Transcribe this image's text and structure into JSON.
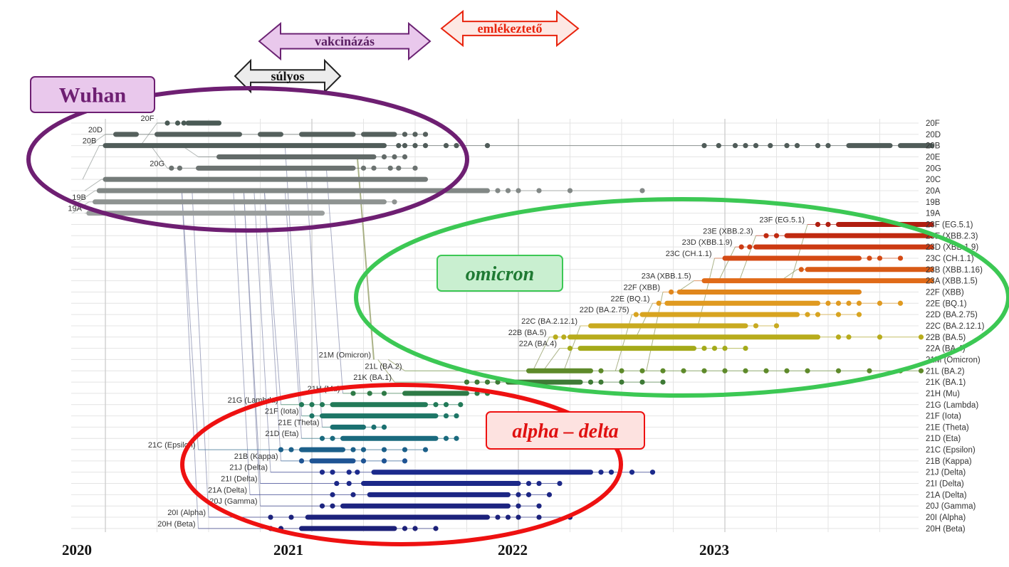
{
  "chart_data": {
    "type": "scatter",
    "title": "",
    "xlabel": "",
    "ylabel": "",
    "x_ticks": [
      "2020",
      "2021",
      "2022",
      "2023"
    ],
    "xlim": [
      "2019-12-01",
      "2023-12-31"
    ],
    "clades": [
      {
        "label": "20F",
        "row": 0,
        "color": "#4a5a55",
        "start": 2020.25,
        "segments": [
          [
            2020.4,
            2020.55
          ]
        ],
        "dots": [
          2020.3,
          2020.35,
          2020.38
        ]
      },
      {
        "label": "20D",
        "row": 1,
        "color": "#55605d",
        "start": 2020.0,
        "segments": [
          [
            2020.05,
            2020.15
          ],
          [
            2020.25,
            2020.65
          ],
          [
            2020.75,
            2020.85
          ],
          [
            2020.95,
            2021.2
          ],
          [
            2021.25,
            2021.4
          ]
        ],
        "dots": [
          2021.45,
          2021.5,
          2021.55
        ]
      },
      {
        "label": "20B",
        "row": 2,
        "color": "#505c59",
        "start": 2019.97,
        "segments": [
          [
            2020.0,
            2021.35
          ]
        ],
        "dots": [
          2021.42,
          2021.45,
          2021.5,
          2021.55,
          2021.65,
          2021.7,
          2021.85,
          2022.9,
          2022.97,
          2023.05,
          2023.1,
          2023.15,
          2023.22,
          2023.3,
          2023.35,
          2023.45,
          2023.5
        ],
        "extra_segments": [
          [
            2023.6,
            2023.8
          ],
          [
            2023.85,
            2024.0
          ]
        ]
      },
      {
        "label": "20E",
        "row": 3,
        "color": "#626a68",
        "start": 2020.45,
        "segments": [
          [
            2020.55,
            2021.3
          ]
        ],
        "dots": [
          2021.35,
          2021.4,
          2021.45
        ]
      },
      {
        "label": "20G",
        "row": 4,
        "color": "#6c7371",
        "start": 2020.3,
        "segments": [
          [
            2020.45,
            2021.2
          ]
        ],
        "dots": [
          2020.32,
          2020.36,
          2021.25,
          2021.3,
          2021.38,
          2021.42,
          2021.5
        ]
      },
      {
        "label": "20C",
        "row": 5,
        "color": "#747b79",
        "start": 2019.98,
        "segments": [
          [
            2020.0,
            2021.55
          ]
        ],
        "dots": []
      },
      {
        "label": "20A",
        "row": 6,
        "color": "#828886",
        "start": 2019.95,
        "segments": [
          [
            2019.97,
            2021.85
          ]
        ],
        "dots": [
          2021.9,
          2021.95,
          2022.0,
          2022.1,
          2022.25,
          2022.6
        ]
      },
      {
        "label": "19B",
        "row": 7,
        "color": "#8e9391",
        "start": 2019.92,
        "segments": [
          [
            2019.95,
            2021.35
          ]
        ],
        "dots": [
          2021.4
        ]
      },
      {
        "label": "19A",
        "row": 8,
        "color": "#9a9e9d",
        "start": 2019.9,
        "segments": [
          [
            2019.92,
            2021.05
          ]
        ],
        "dots": []
      },
      {
        "label": "23F (EG.5.1)",
        "row": 9,
        "color": "#b01e10",
        "start": 2023.4,
        "segments": [
          [
            2023.55,
            2024.0
          ]
        ],
        "dots": [
          2023.45,
          2023.5
        ]
      },
      {
        "label": "23E (XBB.2.3)",
        "row": 10,
        "color": "#c02a10",
        "start": 2023.15,
        "segments": [
          [
            2023.3,
            2024.0
          ]
        ],
        "dots": [
          2023.2,
          2023.25
        ]
      },
      {
        "label": "23D (XBB.1.9)",
        "row": 11,
        "color": "#cc3a12",
        "start": 2023.05,
        "segments": [
          [
            2023.15,
            2024.0
          ]
        ],
        "dots": [
          2023.08,
          2023.12
        ]
      },
      {
        "label": "23C (CH.1.1)",
        "row": 12,
        "color": "#d44a14",
        "start": 2022.95,
        "segments": [
          [
            2023.0,
            2023.65
          ]
        ],
        "dots": [
          2023.7,
          2023.75,
          2023.85
        ]
      },
      {
        "label": "23B (XBB.1.16)",
        "row": 13,
        "color": "#d85a16",
        "start": 2023.35,
        "segments": [
          [
            2023.4,
            2024.0
          ]
        ],
        "dots": [
          2023.37
        ]
      },
      {
        "label": "23A (XBB.1.5)",
        "row": 14,
        "color": "#e06a18",
        "start": 2022.85,
        "segments": [
          [
            2022.9,
            2024.0
          ]
        ],
        "dots": []
      },
      {
        "label": "22F (XBB)",
        "row": 15,
        "color": "#e0861c",
        "start": 2022.7,
        "segments": [
          [
            2022.78,
            2023.65
          ]
        ],
        "dots": [
          2022.74
        ]
      },
      {
        "label": "22E (BQ.1)",
        "row": 16,
        "color": "#e09a20",
        "start": 2022.65,
        "segments": [
          [
            2022.72,
            2023.45
          ]
        ],
        "dots": [
          2022.68,
          2023.5,
          2023.55,
          2023.6,
          2023.65,
          2023.75,
          2023.85
        ]
      },
      {
        "label": "22D (BA.2.75)",
        "row": 17,
        "color": "#d8a420",
        "start": 2022.55,
        "segments": [
          [
            2022.6,
            2023.35
          ]
        ],
        "dots": [
          2022.57,
          2023.4,
          2023.45,
          2023.55,
          2023.65
        ]
      },
      {
        "label": "22C (BA.2.12.1)",
        "row": 18,
        "color": "#c8aa20",
        "start": 2022.3,
        "segments": [
          [
            2022.35,
            2023.1
          ]
        ],
        "dots": [
          2023.15,
          2023.25
        ]
      },
      {
        "label": "22B (BA.5)",
        "row": 19,
        "color": "#b8ac1c",
        "start": 2022.15,
        "segments": [
          [
            2022.25,
            2023.45
          ]
        ],
        "dots": [
          2022.18,
          2022.22,
          2023.55,
          2023.6,
          2023.75,
          2023.95
        ]
      },
      {
        "label": "22A (BA.4)",
        "row": 20,
        "color": "#a4aa1a",
        "start": 2022.2,
        "segments": [
          [
            2022.3,
            2022.85
          ]
        ],
        "dots": [
          2022.25,
          2022.9,
          2022.95,
          2023.0,
          2023.1
        ]
      },
      {
        "label": "21M (Omicron)",
        "row": 21,
        "color": "#7f9a22",
        "start": 2021.3,
        "segments": [],
        "dots": []
      },
      {
        "label": "21L (BA.2)",
        "row": 22,
        "color": "#5e8a2a",
        "start": 2021.45,
        "segments": [
          [
            2022.05,
            2022.35
          ]
        ],
        "dots": [
          2022.4,
          2022.5,
          2022.6,
          2022.7,
          2022.8,
          2022.9,
          2023.0,
          2023.1,
          2023.2,
          2023.3,
          2023.4,
          2023.55,
          2023.7,
          2023.85,
          2023.95
        ]
      },
      {
        "label": "21K (BA.1)",
        "row": 23,
        "color": "#3e7a36",
        "start": 2021.4,
        "segments": [
          [
            2021.95,
            2022.3
          ]
        ],
        "dots": [
          2021.75,
          2021.8,
          2021.85,
          2021.9,
          2022.35,
          2022.4,
          2022.5,
          2022.6,
          2022.7
        ]
      },
      {
        "label": "21H (Mu)",
        "row": 24,
        "color": "#2e7a46",
        "start": 2021.15,
        "segments": [
          [
            2021.45,
            2021.75
          ]
        ],
        "dots": [
          2021.2,
          2021.28,
          2021.35,
          2021.8,
          2021.85
        ]
      },
      {
        "label": "21G (Lambda)",
        "row": 25,
        "color": "#227a58",
        "start": 2020.85,
        "segments": [
          [
            2021.1,
            2021.55
          ]
        ],
        "dots": [
          2020.95,
          2021.0,
          2021.05,
          2021.6,
          2021.65,
          2021.72
        ]
      },
      {
        "label": "21F (Iota)",
        "row": 26,
        "color": "#1d7666",
        "start": 2020.95,
        "segments": [
          [
            2021.05,
            2021.6
          ]
        ],
        "dots": [
          2021.0,
          2021.65,
          2021.7
        ]
      },
      {
        "label": "21E (Theta)",
        "row": 27,
        "color": "#1a7070",
        "start": 2021.05,
        "segments": [
          [
            2021.1,
            2021.25
          ]
        ],
        "dots": [
          2021.3,
          2021.35
        ]
      },
      {
        "label": "21D (Eta)",
        "row": 28,
        "color": "#1a6a7e",
        "start": 2020.95,
        "segments": [
          [
            2021.15,
            2021.6
          ]
        ],
        "dots": [
          2021.05,
          2021.1,
          2021.65,
          2021.7
        ]
      },
      {
        "label": "21C (Epsilon)",
        "row": 29,
        "color": "#1c608a",
        "start": 2020.45,
        "segments": [
          [
            2020.95,
            2021.15
          ]
        ],
        "dots": [
          2020.85,
          2020.9,
          2021.2,
          2021.25,
          2021.35,
          2021.45,
          2021.55
        ]
      },
      {
        "label": "21B (Kappa)",
        "row": 30,
        "color": "#1e5494",
        "start": 2020.85,
        "segments": [
          [
            2021.0,
            2021.2
          ]
        ],
        "dots": [
          2020.95,
          2021.25,
          2021.35,
          2021.45
        ]
      },
      {
        "label": "21J (Delta)",
        "row": 31,
        "color": "#1c2a8c",
        "start": 2020.8,
        "segments": [
          [
            2021.3,
            2022.35
          ]
        ],
        "dots": [
          2021.05,
          2021.1,
          2021.18,
          2021.22,
          2022.4,
          2022.45,
          2022.55,
          2022.65
        ]
      },
      {
        "label": "21I (Delta)",
        "row": 32,
        "color": "#1c2888",
        "start": 2020.75,
        "segments": [
          [
            2021.25,
            2022.0
          ]
        ],
        "dots": [
          2021.12,
          2021.18,
          2022.05,
          2022.1,
          2022.2
        ]
      },
      {
        "label": "21A (Delta)",
        "row": 33,
        "color": "#1c2684",
        "start": 2020.7,
        "segments": [
          [
            2021.28,
            2021.95
          ]
        ],
        "dots": [
          2021.1,
          2021.2,
          2022.0,
          2022.05,
          2022.15
        ]
      },
      {
        "label": "20J (Gamma)",
        "row": 34,
        "color": "#1c2480",
        "start": 2020.75,
        "segments": [
          [
            2021.15,
            2021.95
          ]
        ],
        "dots": [
          2021.05,
          2021.1,
          2022.0,
          2022.1
        ]
      },
      {
        "label": "20I (Alpha)",
        "row": 35,
        "color": "#1c227c",
        "start": 2020.5,
        "segments": [
          [
            2020.98,
            2021.85
          ]
        ],
        "dots": [
          2020.8,
          2020.9,
          2021.9,
          2021.95,
          2022.0,
          2022.1,
          2022.25
        ]
      },
      {
        "label": "20H (Beta)",
        "row": 36,
        "color": "#1c2078",
        "start": 2020.45,
        "segments": [
          [
            2020.95,
            2021.4
          ]
        ],
        "dots": [
          2020.8,
          2020.85,
          2021.45,
          2021.5,
          2021.6
        ]
      }
    ],
    "inline_labels": [
      {
        "text": "20F",
        "row": 0
      },
      {
        "text": "20D",
        "row": 1
      },
      {
        "text": "20B",
        "row": 2
      },
      {
        "text": "20G",
        "row": 4
      },
      {
        "text": "19B",
        "row": 7
      },
      {
        "text": "19A",
        "row": 8
      },
      {
        "text": "23F (EG.5.1)",
        "row": 9
      },
      {
        "text": "23E (XBB.2.3)",
        "row": 10
      },
      {
        "text": "23D (XBB.1.9)",
        "row": 11
      },
      {
        "text": "23C (CH.1.1)",
        "row": 12
      },
      {
        "text": "23A (XBB.1.5)",
        "row": 14
      },
      {
        "text": "22F (XBB)",
        "row": 15
      },
      {
        "text": "22E (BQ.1)",
        "row": 16
      },
      {
        "text": "22D (BA.2.75)",
        "row": 17
      },
      {
        "text": "22C (BA.2.12.1)",
        "row": 18
      },
      {
        "text": "22B (BA.5)",
        "row": 19
      },
      {
        "text": "22A (BA.4)",
        "row": 20
      },
      {
        "text": "21M (Omicron)",
        "row": 21
      },
      {
        "text": "21L (BA.2)",
        "row": 22
      },
      {
        "text": "21K (BA.1)",
        "row": 23
      },
      {
        "text": "21H (Mu)",
        "row": 24
      },
      {
        "text": "21G (Lambda)",
        "row": 25
      },
      {
        "text": "21F (Iota)",
        "row": 26
      },
      {
        "text": "21E (Theta)",
        "row": 27
      },
      {
        "text": "21D (Eta)",
        "row": 28
      },
      {
        "text": "21C (Epsilon)",
        "row": 29
      },
      {
        "text": "21B (Kappa)",
        "row": 30
      },
      {
        "text": "21J (Delta)",
        "row": 31
      },
      {
        "text": "21I (Delta)",
        "row": 32
      },
      {
        "text": "21A (Delta)",
        "row": 33
      },
      {
        "text": "20J (Gamma)",
        "row": 34
      },
      {
        "text": "20I (Alpha)",
        "row": 35
      },
      {
        "text": "20H (Beta)",
        "row": 36
      }
    ]
  },
  "annotations": {
    "arrows": [
      {
        "label": "emlékeztető",
        "fill": "#fde8e4",
        "stroke": "#e8230d",
        "text_color": "#e8230d",
        "from": 2021.7,
        "to": 2022.3
      },
      {
        "label": "vakcinázás",
        "fill": "#e9c8ec",
        "stroke": "#6b2273",
        "text_color": "#5a1f62",
        "from": 2020.9,
        "to": 2021.7
      },
      {
        "label": "súlyos",
        "fill": "#ececec",
        "stroke": "#222222",
        "text_color": "#111111",
        "from": 2020.6,
        "to": 2021.1
      }
    ],
    "groups": [
      {
        "label": "Wuhan",
        "color": "#6e1f72",
        "label_fill": "#e9c8ec",
        "label_text": "#6e1f72",
        "italic": false
      },
      {
        "label": "omicron",
        "color": "#3cc854",
        "label_fill": "#c9efd0",
        "label_text": "#1f7a33",
        "italic": true
      },
      {
        "label": "alpha – delta",
        "color": "#ee1111",
        "label_fill": "#fde2e0",
        "label_text": "#e01010",
        "italic": true
      }
    ]
  }
}
